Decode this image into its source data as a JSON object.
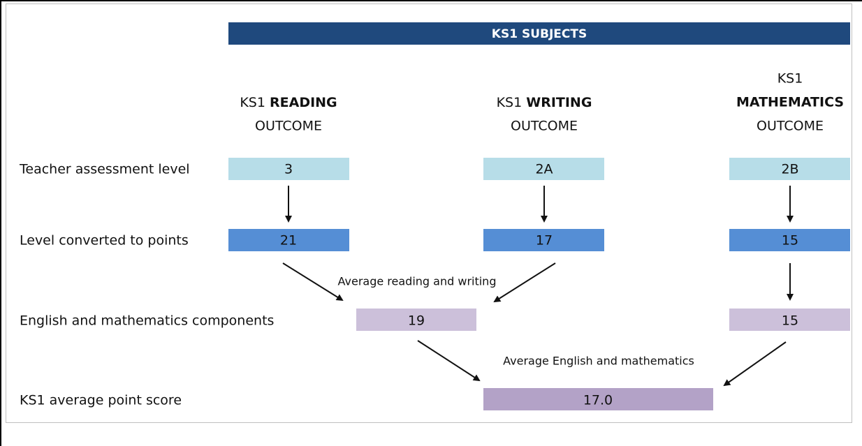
{
  "header": {
    "title": "KS1 SUBJECTS"
  },
  "columns": [
    {
      "prefix": "KS1",
      "subject": "READING",
      "suffix": "OUTCOME"
    },
    {
      "prefix": "KS1",
      "subject": "WRITING",
      "suffix": "OUTCOME"
    },
    {
      "prefix": "KS1",
      "subject": "MATHEMATICS",
      "suffix": "OUTCOME"
    }
  ],
  "rows": [
    {
      "label": "Teacher assessment level",
      "cells": [
        "3",
        "2A",
        "2B"
      ]
    },
    {
      "label": "Level converted to points",
      "cells": [
        "21",
        "17",
        "15"
      ]
    },
    {
      "label": "English and mathematics components",
      "cells": [
        "19",
        "15"
      ]
    },
    {
      "label": "KS1 average point score",
      "cells": [
        "17.0"
      ]
    }
  ],
  "annotations": [
    "Average reading and writing",
    "Average English and mathematics"
  ]
}
